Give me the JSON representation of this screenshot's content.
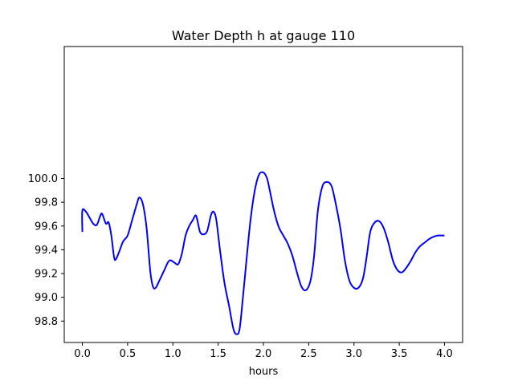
{
  "chart_data": {
    "type": "line",
    "title": "Water Depth h at gauge 110",
    "xlabel": "hours",
    "ylabel": "",
    "xlim": [
      -0.2,
      4.2
    ],
    "ylim": [
      98.62,
      101.11
    ],
    "grid": false,
    "legend": "none",
    "xticks": [
      {
        "value": 0.0,
        "label": "0.0"
      },
      {
        "value": 0.5,
        "label": "0.5"
      },
      {
        "value": 1.0,
        "label": "1.0"
      },
      {
        "value": 1.5,
        "label": "1.5"
      },
      {
        "value": 2.0,
        "label": "2.0"
      },
      {
        "value": 2.5,
        "label": "2.5"
      },
      {
        "value": 3.0,
        "label": "3.0"
      },
      {
        "value": 3.5,
        "label": "3.5"
      },
      {
        "value": 4.0,
        "label": "4.0"
      }
    ],
    "yticks": [
      {
        "value": 98.8,
        "label": "98.8"
      },
      {
        "value": 99.0,
        "label": "99.0"
      },
      {
        "value": 99.2,
        "label": "99.2"
      },
      {
        "value": 99.4,
        "label": "99.4"
      },
      {
        "value": 99.6,
        "label": "99.6"
      },
      {
        "value": 99.8,
        "label": "99.8"
      },
      {
        "value": 100.0,
        "label": "100.0"
      }
    ],
    "series": [
      {
        "color": "#0000ff",
        "x": [
          0.0,
          0.0,
          0.04,
          0.08,
          0.12,
          0.16,
          0.2,
          0.22,
          0.26,
          0.29,
          0.32,
          0.35,
          0.37,
          0.41,
          0.45,
          0.5,
          0.55,
          0.6,
          0.63,
          0.67,
          0.71,
          0.75,
          0.78,
          0.81,
          0.85,
          0.9,
          0.95,
          0.98,
          1.02,
          1.06,
          1.1,
          1.14,
          1.18,
          1.22,
          1.25,
          1.27,
          1.3,
          1.34,
          1.38,
          1.42,
          1.45,
          1.48,
          1.52,
          1.57,
          1.62,
          1.67,
          1.71,
          1.74,
          1.78,
          1.85,
          1.9,
          1.95,
          2.0,
          2.04,
          2.07,
          2.12,
          2.17,
          2.22,
          2.27,
          2.32,
          2.37,
          2.42,
          2.47,
          2.52,
          2.56,
          2.6,
          2.65,
          2.7,
          2.75,
          2.79,
          2.85,
          2.9,
          2.95,
          3.0,
          3.05,
          3.1,
          3.14,
          3.18,
          3.23,
          3.28,
          3.33,
          3.38,
          3.43,
          3.48,
          3.53,
          3.58,
          3.63,
          3.68,
          3.73,
          3.78,
          3.83,
          3.88,
          3.93,
          3.97,
          4.0
        ],
        "y": [
          99.55,
          99.73,
          99.72,
          99.67,
          99.62,
          99.61,
          99.69,
          99.7,
          99.62,
          99.63,
          99.52,
          99.34,
          99.32,
          99.39,
          99.47,
          99.52,
          99.65,
          99.78,
          99.84,
          99.78,
          99.58,
          99.22,
          99.09,
          99.08,
          99.14,
          99.22,
          99.3,
          99.31,
          99.29,
          99.28,
          99.37,
          99.52,
          99.6,
          99.65,
          99.69,
          99.65,
          99.55,
          99.53,
          99.56,
          99.69,
          99.72,
          99.65,
          99.4,
          99.12,
          98.93,
          98.73,
          98.69,
          98.75,
          99.05,
          99.6,
          99.88,
          100.03,
          100.05,
          100.0,
          99.9,
          99.72,
          99.59,
          99.52,
          99.45,
          99.35,
          99.21,
          99.09,
          99.06,
          99.14,
          99.35,
          99.72,
          99.93,
          99.97,
          99.94,
          99.82,
          99.58,
          99.31,
          99.14,
          99.08,
          99.08,
          99.16,
          99.34,
          99.55,
          99.63,
          99.64,
          99.58,
          99.46,
          99.31,
          99.23,
          99.21,
          99.25,
          99.31,
          99.38,
          99.43,
          99.46,
          99.49,
          99.51,
          99.52,
          99.52,
          99.52
        ]
      }
    ]
  }
}
